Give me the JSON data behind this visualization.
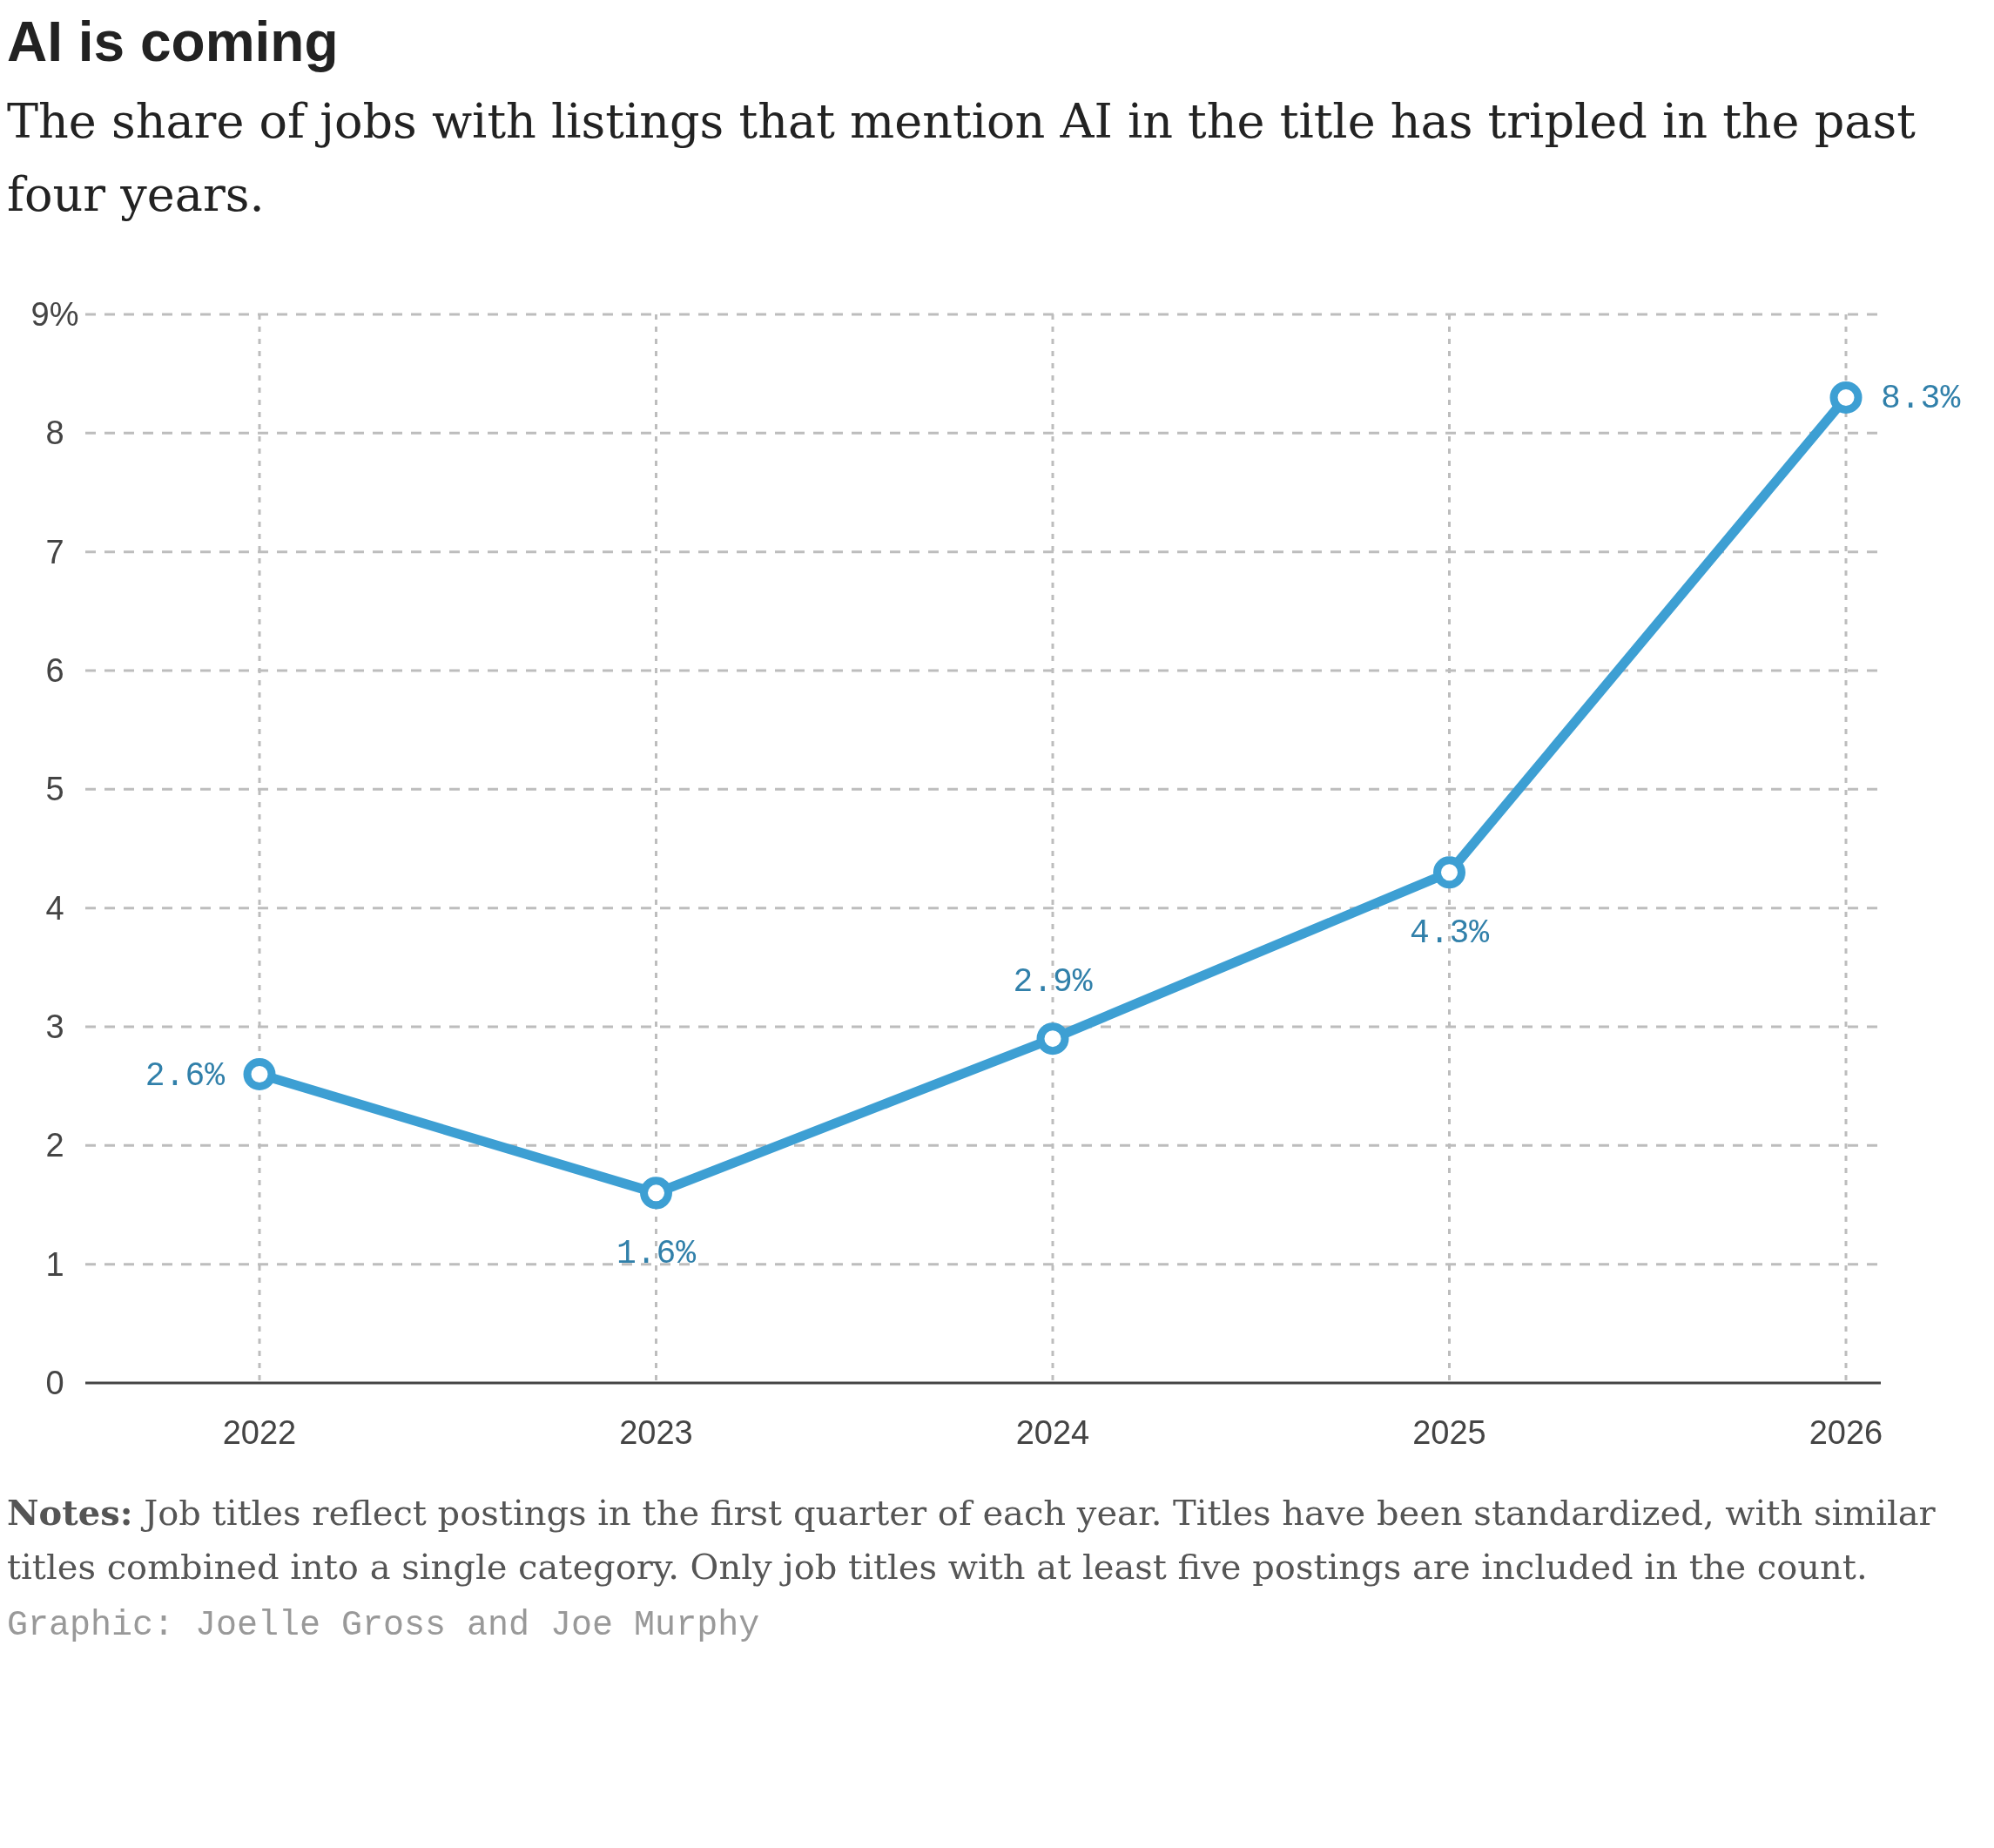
{
  "chart_data": {
    "type": "line",
    "title": "AI is coming",
    "subtitle": "The share of jobs with listings that mention AI in the title has tripled in the past four years.",
    "categories": [
      "2022",
      "2023",
      "2024",
      "2025",
      "2026"
    ],
    "series": [
      {
        "color": "#3d9fd3",
        "values": [
          2.6,
          1.6,
          2.9,
          4.3,
          8.3
        ],
        "value_labels": [
          "2.6%",
          "1.6%",
          "2.9%",
          "4.3%",
          "8.3%"
        ]
      }
    ],
    "ylim": [
      0,
      9
    ],
    "yticks": [
      0,
      1,
      2,
      3,
      4,
      5,
      6,
      7,
      8,
      {
        "value": 9,
        "label": "9%"
      }
    ],
    "grid": true,
    "marker": "circle",
    "line_style": "solid",
    "annotations": [
      "Notes: Job titles reflect postings in the first quarter of each year. Titles have been standardized, with similar titles combined into a single category. Only job titles with at least five postings are included in the count.",
      "Graphic: Joelle Gross and Joe Murphy"
    ]
  }
}
